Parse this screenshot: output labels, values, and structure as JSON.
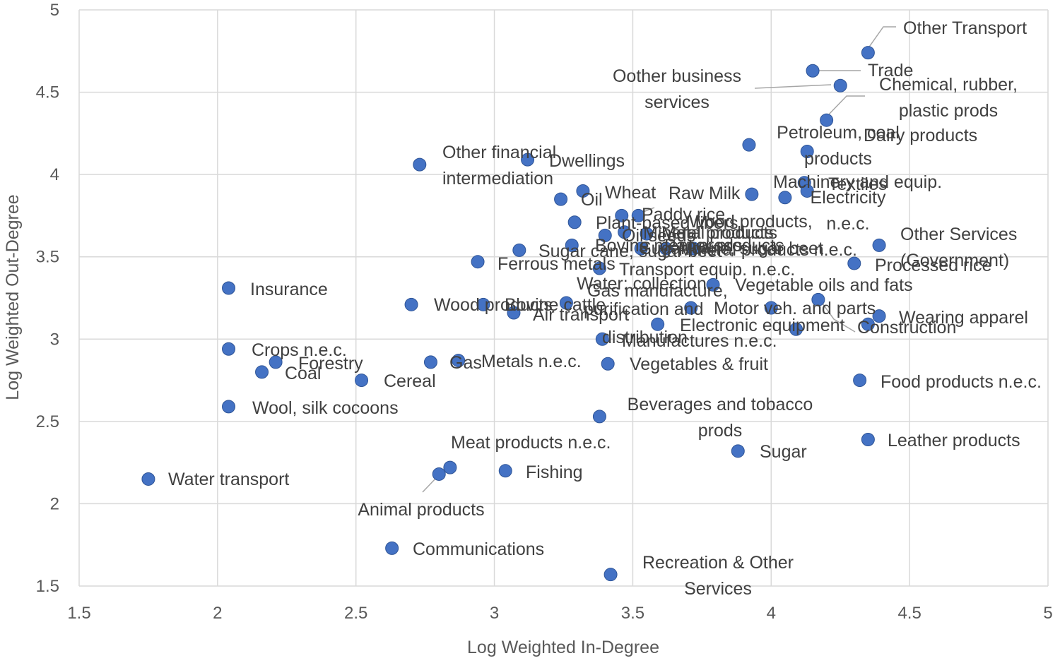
{
  "chart_data": {
    "type": "scatter",
    "title": "",
    "xlabel": "Log Weighted In-Degree",
    "ylabel": "Log Weighted Out-Degree",
    "xlim": [
      1.5,
      5
    ],
    "ylim": [
      1.5,
      5
    ],
    "xticks": [
      1.5,
      2,
      2.5,
      3,
      3.5,
      4,
      4.5,
      5
    ],
    "yticks": [
      1.5,
      2,
      2.5,
      3,
      3.5,
      4,
      4.5,
      5
    ],
    "x_tick_labels": [
      "1.5",
      "2",
      "2.5",
      "3",
      "3.5",
      "4",
      "4.5",
      "5"
    ],
    "y_tick_labels": [
      "1.5",
      "2",
      "2.5",
      "3",
      "3.5",
      "4",
      "4.5",
      "5"
    ],
    "grid": true,
    "points": [
      {
        "x": 4.35,
        "y": 4.74,
        "label": [
          "Other Transport"
        ]
      },
      {
        "x": 4.15,
        "y": 4.63,
        "label": [
          "Trade"
        ]
      },
      {
        "x": 4.25,
        "y": 4.54,
        "label": [
          "Oother business",
          "services"
        ]
      },
      {
        "x": 4.2,
        "y": 4.33,
        "label": [
          "Chemical, rubber,",
          "plastic prods"
        ]
      },
      {
        "x": 3.92,
        "y": 4.18,
        "label": [
          "Petroleum, coal",
          "products"
        ]
      },
      {
        "x": 4.13,
        "y": 4.14,
        "label": [
          "Dairy products"
        ]
      },
      {
        "x": 2.73,
        "y": 4.06,
        "label": [
          "Other financial",
          "intermediation"
        ]
      },
      {
        "x": 3.12,
        "y": 4.09,
        "label": [
          "Dwellings"
        ]
      },
      {
        "x": 3.32,
        "y": 3.9,
        "label": [
          "Oil"
        ]
      },
      {
        "x": 3.24,
        "y": 3.85,
        "label": [
          "Wheat"
        ]
      },
      {
        "x": 3.93,
        "y": 3.88,
        "label": [
          "Raw Milk"
        ]
      },
      {
        "x": 4.12,
        "y": 3.95,
        "label": [
          "Machinery and equip."
        ]
      },
      {
        "x": 4.05,
        "y": 3.86,
        "label": [
          "Textiles"
        ]
      },
      {
        "x": 4.13,
        "y": 3.9,
        "label": [
          "Electricity",
          "n.e.c."
        ]
      },
      {
        "x": 3.46,
        "y": 3.75,
        "label": [
          "Paddy rice"
        ]
      },
      {
        "x": 3.52,
        "y": 3.75,
        "label": [
          "Plant-based fibers"
        ]
      },
      {
        "x": 3.29,
        "y": 3.71,
        "label": [
          "Wood products,"
        ]
      },
      {
        "x": 3.4,
        "y": 3.63,
        "label": [
          "Oil seeds"
        ]
      },
      {
        "x": 3.47,
        "y": 3.65,
        "label": [
          "Mineral products"
        ]
      },
      {
        "x": 3.55,
        "y": 3.64,
        "label": [
          "Metal products"
        ]
      },
      {
        "x": 3.28,
        "y": 3.57,
        "label": [
          "Bovine meat prods"
        ]
      },
      {
        "x": 3.53,
        "y": 3.55,
        "label": [
          "Sugar cane, sugar beet"
        ]
      },
      {
        "x": 3.62,
        "y": 3.55,
        "label": [
          "Paper products"
        ]
      },
      {
        "x": 3.09,
        "y": 3.54,
        "label": [
          "Sugar cane, sugar beet"
        ]
      },
      {
        "x": 4.39,
        "y": 3.57,
        "label": [
          "Other Services",
          "(Government)"
        ]
      },
      {
        "x": 4.3,
        "y": 3.46,
        "label": [
          "Processed rice"
        ]
      },
      {
        "x": 3.72,
        "y": 3.55,
        "label": [
          "Mineral products n.e.c."
        ]
      },
      {
        "x": 2.94,
        "y": 3.47,
        "label": [
          "Ferrous metals"
        ]
      },
      {
        "x": 3.38,
        "y": 3.43,
        "label": [
          "Transport equip. n.e.c."
        ]
      },
      {
        "x": 3.79,
        "y": 3.33,
        "label": [
          "Water: collection,"
        ]
      },
      {
        "x": 4.17,
        "y": 3.24,
        "label": [
          "Vegetable oils and fats"
        ]
      },
      {
        "x": 2.04,
        "y": 3.31,
        "label": [
          "Insurance"
        ]
      },
      {
        "x": 2.7,
        "y": 3.21,
        "label": [
          "Wood products"
        ]
      },
      {
        "x": 2.96,
        "y": 3.21,
        "label": [
          "Bovine cattle"
        ]
      },
      {
        "x": 3.26,
        "y": 3.22,
        "label": [
          "Gas manufacture,"
        ]
      },
      {
        "x": 3.07,
        "y": 3.16,
        "label": [
          "Air transport"
        ]
      },
      {
        "x": 3.71,
        "y": 3.19,
        "label": [
          "purification and"
        ]
      },
      {
        "x": 3.59,
        "y": 3.09,
        "label": [
          "distribution"
        ]
      },
      {
        "x": 4.0,
        "y": 3.19,
        "label": [
          "Motor veh. and parts"
        ]
      },
      {
        "x": 4.09,
        "y": 3.06,
        "label": [
          "Electronic equipment"
        ]
      },
      {
        "x": 4.35,
        "y": 3.09,
        "label": [
          "Construction"
        ]
      },
      {
        "x": 4.39,
        "y": 3.14,
        "label": [
          "Wearing apparel"
        ]
      },
      {
        "x": 3.39,
        "y": 3.0,
        "label": [
          "Manufactures n.e.c."
        ]
      },
      {
        "x": 2.04,
        "y": 2.94,
        "label": [
          "Crops n.e.c."
        ]
      },
      {
        "x": 2.21,
        "y": 2.86,
        "label": [
          "Forestry"
        ]
      },
      {
        "x": 2.16,
        "y": 2.8,
        "label": [
          "Coal"
        ]
      },
      {
        "x": 2.77,
        "y": 2.86,
        "label": [
          "Gas"
        ]
      },
      {
        "x": 2.87,
        "y": 2.87,
        "label": [
          "Metals n.e.c."
        ]
      },
      {
        "x": 3.41,
        "y": 2.85,
        "label": [
          "Vegetables & fruit"
        ]
      },
      {
        "x": 2.52,
        "y": 2.75,
        "label": [
          "Cereal"
        ]
      },
      {
        "x": 4.32,
        "y": 2.75,
        "label": [
          "Food products n.e.c."
        ]
      },
      {
        "x": 2.04,
        "y": 2.59,
        "label": [
          "Wool, silk cocoons"
        ]
      },
      {
        "x": 3.38,
        "y": 2.53,
        "label": [
          "Beverages and tobacco",
          "prods"
        ]
      },
      {
        "x": 4.35,
        "y": 2.39,
        "label": [
          "Leather products"
        ]
      },
      {
        "x": 3.88,
        "y": 2.32,
        "label": [
          "Sugar"
        ]
      },
      {
        "x": 2.84,
        "y": 2.22,
        "label": [
          "Meat products n.e.c."
        ]
      },
      {
        "x": 2.8,
        "y": 2.18,
        "label": [
          "Animal products"
        ]
      },
      {
        "x": 3.04,
        "y": 2.2,
        "label": [
          "Fishing"
        ]
      },
      {
        "x": 1.75,
        "y": 2.15,
        "label": [
          "Water transport"
        ]
      },
      {
        "x": 2.63,
        "y": 1.73,
        "label": [
          "Communications"
        ]
      },
      {
        "x": 3.42,
        "y": 1.57,
        "label": [
          "Recreation & Other",
          "Services"
        ]
      }
    ]
  }
}
